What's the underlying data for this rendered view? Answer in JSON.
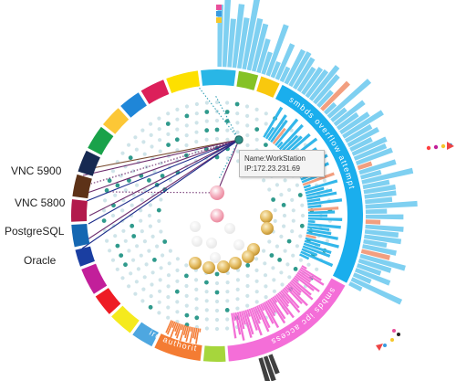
{
  "labels": [
    {
      "id": "vnc5900",
      "text": "VNC 5900",
      "interactable": true
    },
    {
      "id": "vnc5800",
      "text": "VNC 5800",
      "interactable": true
    },
    {
      "id": "postgresql",
      "text": "PostgreSQL",
      "interactable": true
    },
    {
      "id": "oracle",
      "text": "Oracle",
      "interactable": true
    }
  ],
  "tooltip": {
    "name_line": "Name:WorkStation",
    "ip_line": "IP:172.23.231.69"
  },
  "arc_labels": {
    "outer_top": "smbds  overflow  attempt",
    "outer_right": "smbds  ipc  access",
    "outer_bottom": "irc  authorities"
  },
  "colors": {
    "sky": "#33b7ea",
    "sky_light": "#7fd0f1",
    "pink": "#f36fd6",
    "orange": "#f47f3b",
    "salmon": "#f29f80",
    "teal": "#2f9a8c",
    "dot_light": "#cfe4e9",
    "node_pink": "#f5a9b8",
    "node_gold": "#d8b15a",
    "line_purple": "#6b2a6b",
    "line_navy": "#1b2b8a",
    "line_brown": "#7a4d32",
    "line_teal": "#35a0b4"
  },
  "ring_segments": [
    {
      "name": "cyan",
      "color": "#29b6e6"
    },
    {
      "name": "green",
      "color": "#85c226"
    },
    {
      "name": "yellow",
      "color": "#f9c80e"
    },
    {
      "name": "blue-big",
      "color": "#1aaeed"
    },
    {
      "name": "pink-big",
      "color": "#f46ed8"
    },
    {
      "name": "lime",
      "color": "#a6d63c"
    },
    {
      "name": "orange",
      "color": "#f47c33"
    },
    {
      "name": "skyblue",
      "color": "#4ea7e0"
    },
    {
      "name": "yellow2",
      "color": "#f5ea1e"
    },
    {
      "name": "red",
      "color": "#ee1c24"
    },
    {
      "name": "magenta",
      "color": "#c21f9a"
    },
    {
      "name": "navy",
      "color": "#1a3ea1"
    },
    {
      "name": "blue",
      "color": "#1567b2"
    },
    {
      "name": "crimson",
      "color": "#b21a4c"
    },
    {
      "name": "brown",
      "color": "#5d3218"
    },
    {
      "name": "darknavy",
      "color": "#172a52"
    },
    {
      "name": "green2",
      "color": "#19a24a"
    },
    {
      "name": "amber",
      "color": "#fcc736"
    },
    {
      "name": "blue2",
      "color": "#1f86d8"
    },
    {
      "name": "rose",
      "color": "#dc1f5a"
    },
    {
      "name": "yellow3",
      "color": "#fde000"
    }
  ]
}
